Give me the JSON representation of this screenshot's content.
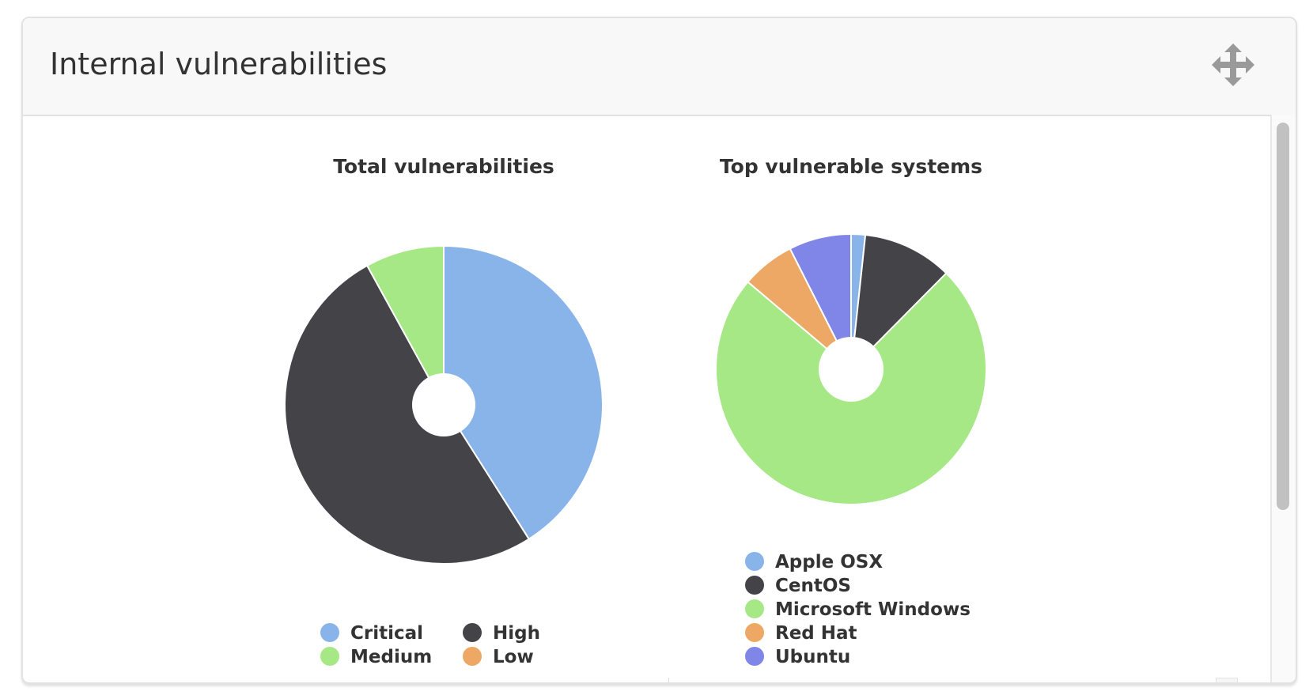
{
  "panel": {
    "title": "Internal vulnerabilities",
    "move_icon": "move-arrows-icon"
  },
  "colors": {
    "Critical": "#88b4ea",
    "High": "#434348",
    "Medium": "#a6e886",
    "Low": "#eca864",
    "Apple OSX": "#88b4ea",
    "CentOS": "#434348",
    "Microsoft Windows": "#a6e886",
    "Red Hat": "#eca864",
    "Ubuntu": "#8085e8"
  },
  "chart_data": [
    {
      "type": "pie",
      "title": "Total vulnerabilities",
      "donut": true,
      "categories": [
        "Critical",
        "High",
        "Medium",
        "Low"
      ],
      "values": [
        41,
        51,
        8,
        0
      ],
      "legend": "bottom"
    },
    {
      "type": "pie",
      "title": "Top vulnerable systems",
      "donut": true,
      "categories": [
        "Apple OSX",
        "CentOS",
        "Microsoft Windows",
        "Red Hat",
        "Ubuntu"
      ],
      "values": [
        1.7,
        10.8,
        74.2,
        6.4,
        7.5
      ],
      "legend": "bottom"
    }
  ]
}
